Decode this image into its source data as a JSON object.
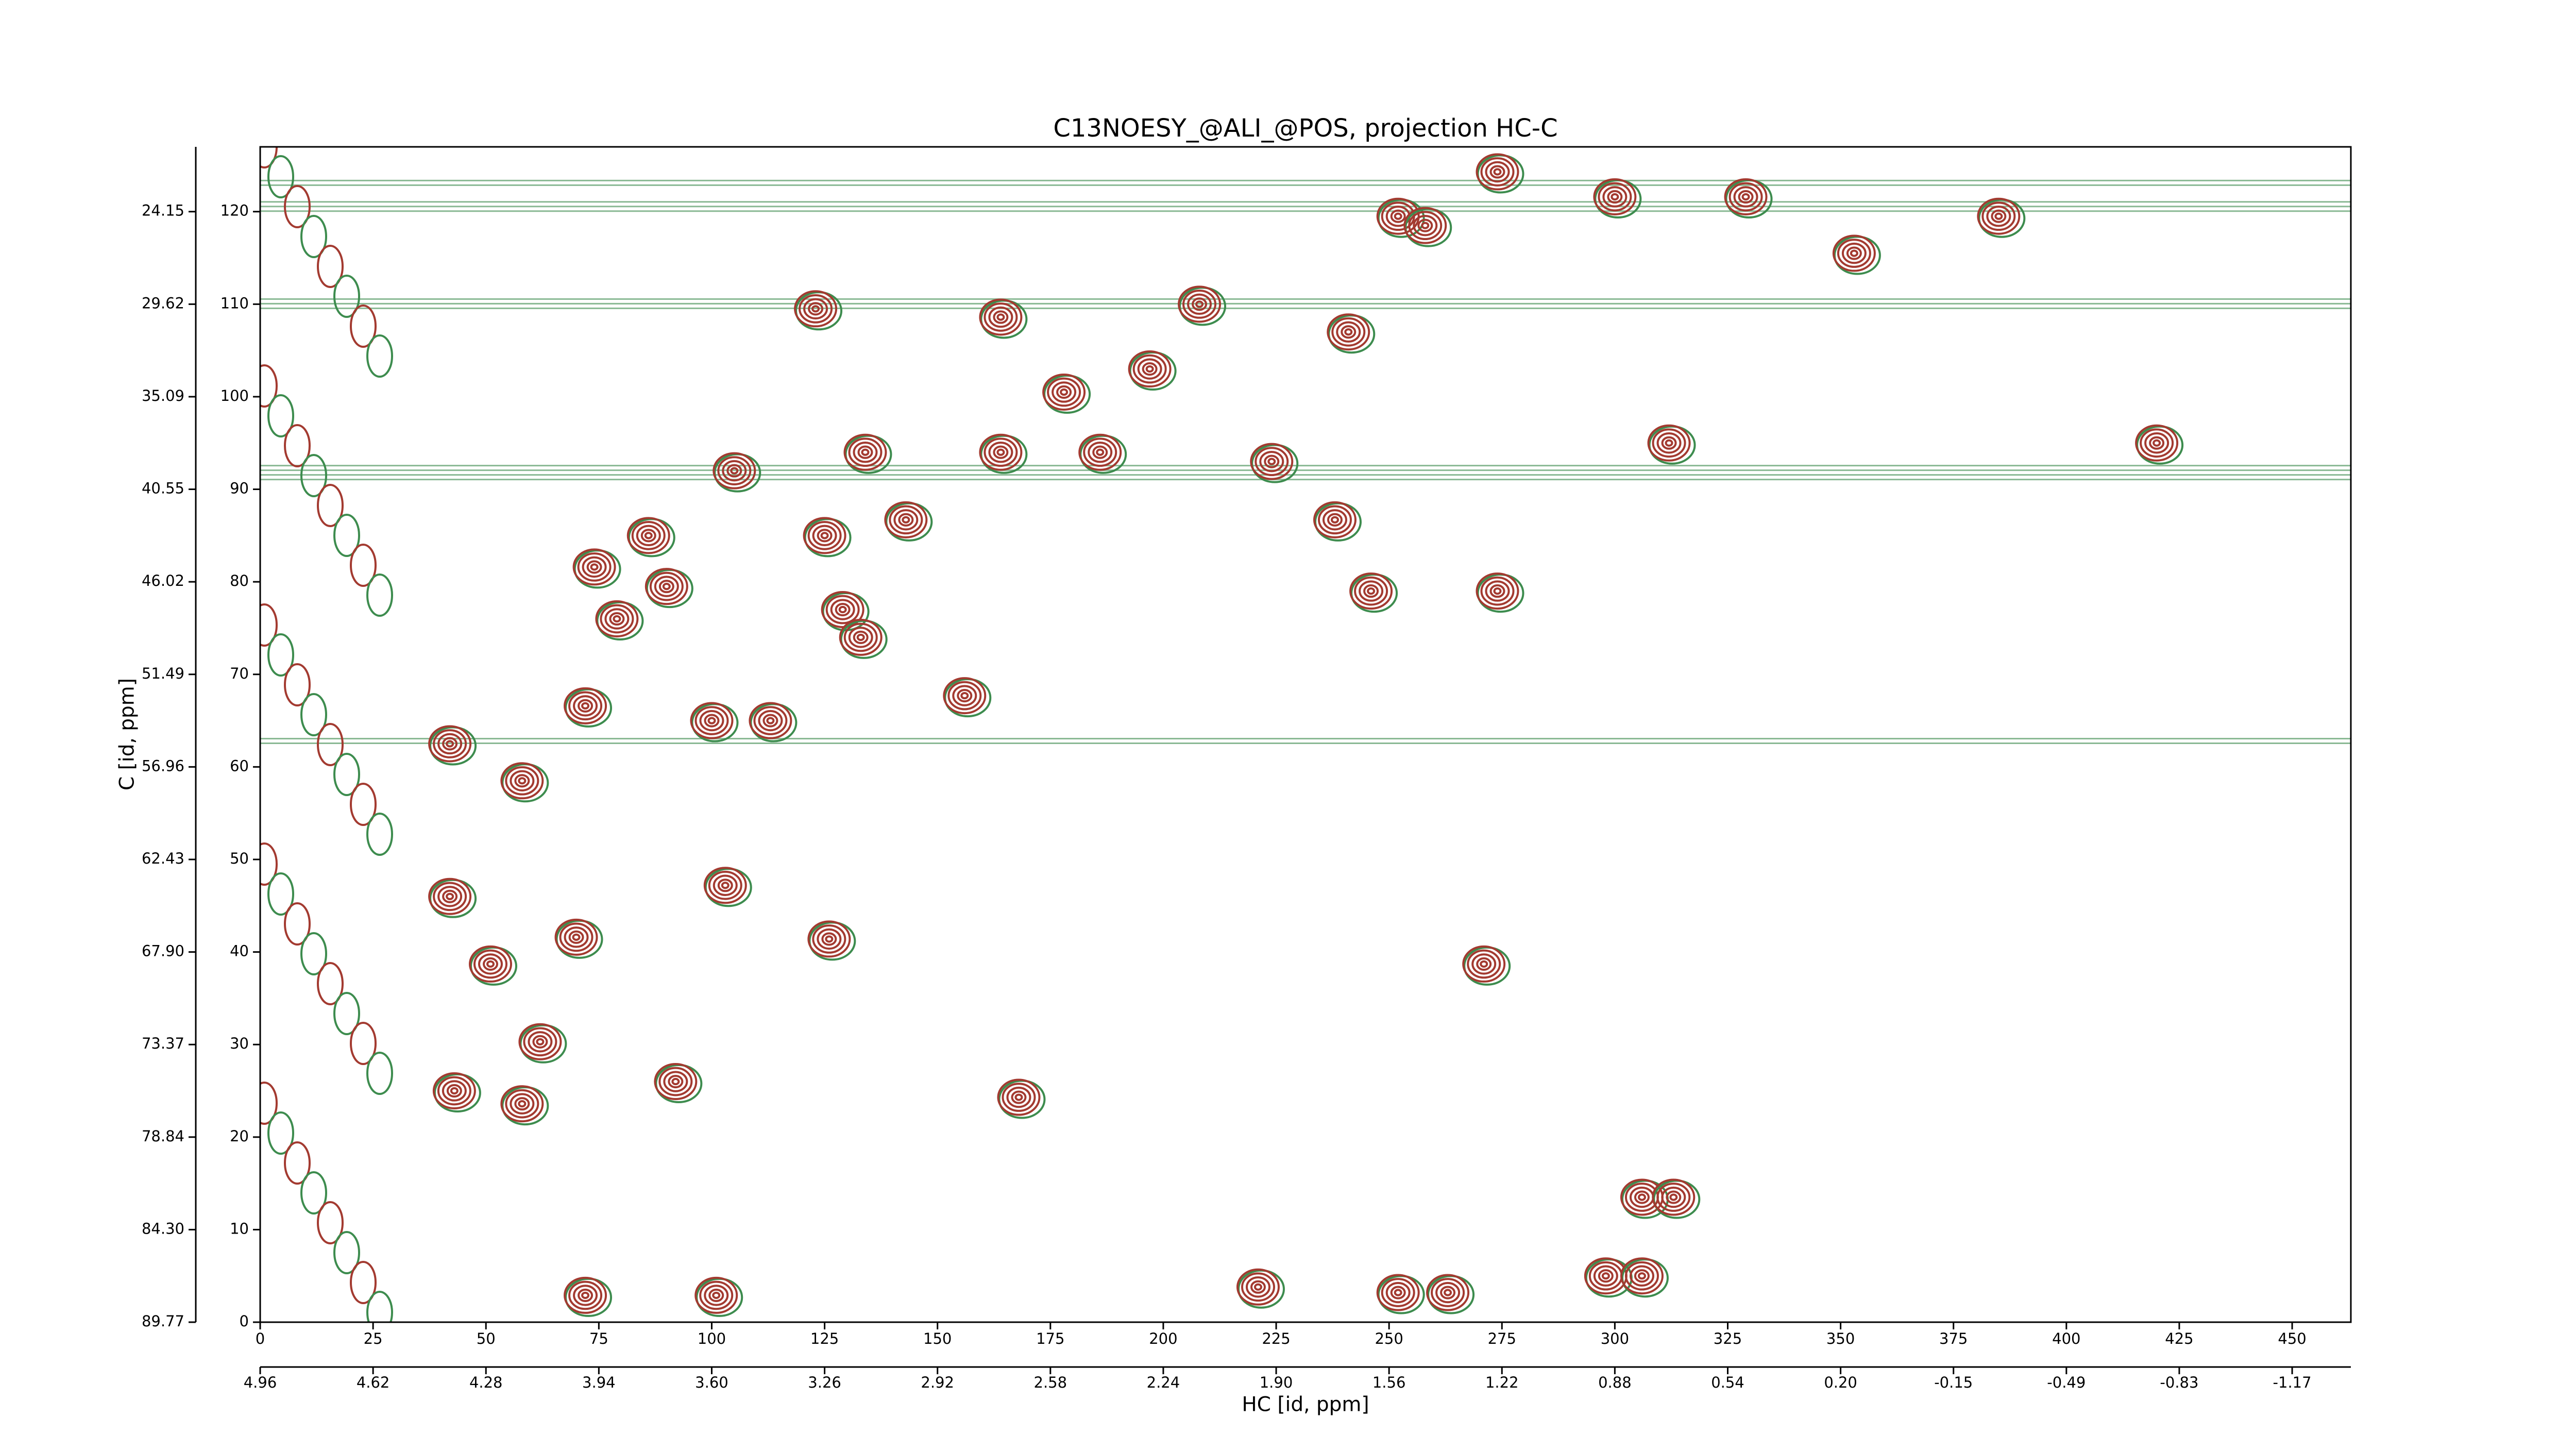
{
  "chart_data": {
    "type": "contour",
    "title": "C13NOESY_@ALI_@POS, projection HC-C",
    "xlabel": "HC [id, ppm]",
    "ylabel": "C [id, ppm]",
    "xlim": [
      0,
      463
    ],
    "ylim": [
      0,
      127
    ],
    "xticks": [
      0,
      25,
      50,
      75,
      100,
      125,
      150,
      175,
      200,
      225,
      250,
      275,
      300,
      325,
      350,
      375,
      400,
      425,
      450
    ],
    "yticks": [
      0,
      10,
      20,
      30,
      40,
      50,
      60,
      70,
      80,
      90,
      100,
      110,
      120
    ],
    "x2ticks": [
      {
        "value": 0,
        "label": "4.96"
      },
      {
        "value": 25,
        "label": "4.62"
      },
      {
        "value": 50,
        "label": "4.28"
      },
      {
        "value": 75,
        "label": "3.94"
      },
      {
        "value": 100,
        "label": "3.60"
      },
      {
        "value": 125,
        "label": "3.26"
      },
      {
        "value": 150,
        "label": "2.92"
      },
      {
        "value": 175,
        "label": "2.58"
      },
      {
        "value": 200,
        "label": "2.24"
      },
      {
        "value": 225,
        "label": "1.90"
      },
      {
        "value": 250,
        "label": "1.56"
      },
      {
        "value": 275,
        "label": "1.22"
      },
      {
        "value": 300,
        "label": "0.88"
      },
      {
        "value": 325,
        "label": "0.54"
      },
      {
        "value": 350,
        "label": "0.20"
      },
      {
        "value": 375,
        "label": "-0.15"
      },
      {
        "value": 400,
        "label": "-0.49"
      },
      {
        "value": 425,
        "label": "-0.83"
      },
      {
        "value": 450,
        "label": "-1.17"
      }
    ],
    "y2ticks": [
      {
        "value": 0,
        "label": "89.77"
      },
      {
        "value": 10,
        "label": "84.30"
      },
      {
        "value": 20,
        "label": "78.84"
      },
      {
        "value": 30,
        "label": "73.37"
      },
      {
        "value": 40,
        "label": "67.90"
      },
      {
        "value": 50,
        "label": "62.43"
      },
      {
        "value": 60,
        "label": "56.96"
      },
      {
        "value": 70,
        "label": "51.49"
      },
      {
        "value": 80,
        "label": "46.02"
      },
      {
        "value": 90,
        "label": "40.55"
      },
      {
        "value": 100,
        "label": "35.09"
      },
      {
        "value": 110,
        "label": "29.62"
      },
      {
        "value": 120,
        "label": "24.15"
      }
    ],
    "positive_color": "#a33a30",
    "negative_color": "#3d8c4e",
    "peaks": {
      "x": [
        329,
        385,
        353,
        420,
        300,
        274,
        252,
        208,
        164,
        123,
        134,
        164,
        186,
        105,
        238,
        143,
        125,
        86,
        90,
        74,
        246,
        274,
        129,
        79,
        133,
        156,
        113,
        100,
        72,
        42,
        58,
        42,
        51,
        70,
        103,
        126,
        92,
        62,
        58,
        43,
        168,
        221,
        252,
        263,
        298,
        306,
        306,
        313,
        271,
        224,
        312,
        178,
        197,
        241,
        258,
        101,
        72
      ],
      "y": [
        121.6,
        119.5,
        115.5,
        95,
        121.6,
        124.3,
        119.5,
        110,
        108.6,
        109.5,
        94,
        94,
        94,
        92,
        86.7,
        86.7,
        85,
        85,
        79.5,
        81.6,
        79,
        79,
        77,
        76,
        74,
        67.7,
        65,
        65,
        66.6,
        62.5,
        58.5,
        46,
        38.7,
        41.6,
        47.2,
        41.4,
        26,
        30.3,
        23.6,
        25,
        24.3,
        3.8,
        3.2,
        3.2,
        5,
        5,
        13.5,
        13.5,
        38.7,
        93,
        95,
        100.5,
        103,
        107,
        118.5,
        2.9,
        2.9
      ]
    }
  }
}
